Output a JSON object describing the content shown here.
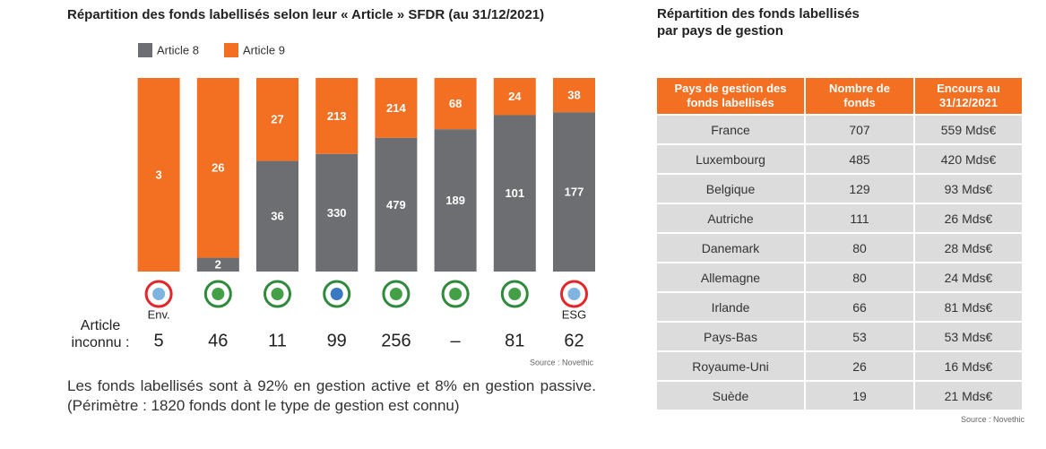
{
  "chart_data": {
    "type": "stacked_bar_100",
    "title": "Répartition des fonds labellisés selon leur « Article » SFDR (au 31/12/2021)",
    "categories": [
      "Env.",
      null,
      null,
      null,
      null,
      null,
      null,
      "ESG"
    ],
    "series": [
      {
        "name": "Article 8",
        "color": "#6d6e71",
        "values": [
          0,
          2,
          36,
          330,
          479,
          189,
          101,
          177
        ]
      },
      {
        "name": "Article 9",
        "color": "#f36f21",
        "values": [
          3,
          26,
          27,
          213,
          214,
          68,
          24,
          38
        ]
      }
    ],
    "unknown_label": [
      "Article",
      "inconnu :"
    ],
    "unknown_values": [
      5,
      46,
      11,
      99,
      256,
      "–",
      81,
      62
    ],
    "source": "Source : Novethic",
    "note": "Les fonds labellisés sont à 92% en gestion active et 8% en gestion passive. (Périmètre : 1820 fonds dont le type de gestion est connu)"
  },
  "table": {
    "title": [
      "Répartition des fonds labellisés",
      "par pays de gestion"
    ],
    "headers": [
      [
        "Pays de gestion des",
        "fonds labellisés"
      ],
      [
        "Nombre de",
        "fonds"
      ],
      [
        "Encours au",
        "31/12/2021"
      ]
    ],
    "rows": [
      [
        "France",
        "707",
        "559 Mds€"
      ],
      [
        "Luxembourg",
        "485",
        "420 Mds€"
      ],
      [
        "Belgique",
        "129",
        "93 Mds€"
      ],
      [
        "Autriche",
        "111",
        "26 Mds€"
      ],
      [
        "Danemark",
        "80",
        "28 Mds€"
      ],
      [
        "Allemagne",
        "80",
        "24 Mds€"
      ],
      [
        "Irlande",
        "66",
        "81 Mds€"
      ],
      [
        "Pays-Bas",
        "53",
        "53 Mds€"
      ],
      [
        "Royaume-Uni",
        "26",
        "16 Mds€"
      ],
      [
        "Suède",
        "19",
        "21 Mds€"
      ]
    ],
    "source": "Source : Novethic"
  }
}
